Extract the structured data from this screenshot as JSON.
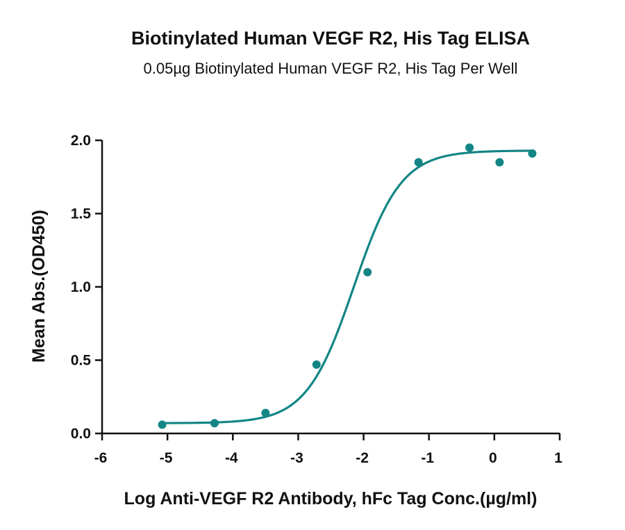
{
  "chart_data": {
    "type": "scatter",
    "title": "Biotinylated Human VEGF R2, His Tag ELISA",
    "subtitle": "0.05µg Biotinylated Human VEGF R2, His Tag Per Well",
    "xlabel": "Log Anti-VEGF R2 Antibody, hFc Tag Conc.(µg/ml)",
    "ylabel": "Mean Abs.(OD450)",
    "xlim": [
      -6,
      1
    ],
    "ylim": [
      0,
      2
    ],
    "x_ticks": [
      -6,
      -5,
      -4,
      -3,
      -2,
      -1,
      0,
      1
    ],
    "x_tick_labels": [
      "-6",
      "-5",
      "-4",
      "-3",
      "-2",
      "-1",
      "0",
      "1"
    ],
    "y_ticks": [
      0,
      0.5,
      1,
      1.5,
      2
    ],
    "y_tick_labels": [
      "0.0",
      "0.5",
      "1.0",
      "1.5",
      "2.0"
    ],
    "grid": false,
    "legend": "none",
    "color": "#138585",
    "series": [
      {
        "points": [
          {
            "x": -5.08,
            "y": 0.06
          },
          {
            "x": -4.28,
            "y": 0.07
          },
          {
            "x": -3.5,
            "y": 0.14
          },
          {
            "x": -2.72,
            "y": 0.47
          },
          {
            "x": -1.94,
            "y": 1.1
          },
          {
            "x": -1.16,
            "y": 1.85
          },
          {
            "x": -0.38,
            "y": 1.95
          },
          {
            "x": 0.08,
            "y": 1.85
          },
          {
            "x": 0.58,
            "y": 1.91
          }
        ],
        "fit": {
          "model": "4PL",
          "bottom": 0.07,
          "top": 1.93,
          "log_ec50": -2.15,
          "hill": 1.2,
          "x_range": [
            -5.08,
            0.58
          ]
        }
      }
    ]
  }
}
